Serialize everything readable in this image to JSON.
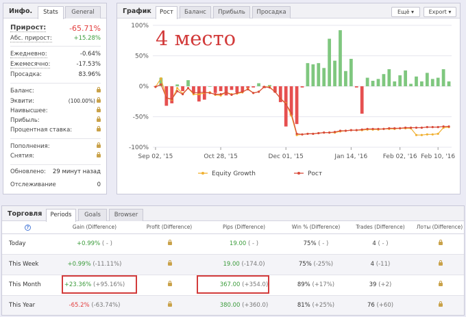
{
  "info": {
    "title": "Инфо.",
    "tabs": [
      "Stats",
      "General"
    ],
    "growth_label": "Прирост:",
    "growth_value": "-65.71%",
    "abs_label": "Абс. прирост:",
    "abs_value": "+15.28%",
    "daily_label": "Ежедневно:",
    "daily_value": "-0.64%",
    "monthly_label": "Ежемесячно:",
    "monthly_value": "-17.53%",
    "drawdown_label": "Просадка:",
    "drawdown_value": "83.96%",
    "balance_label": "Баланс:",
    "equity_label": "Эквити:",
    "equity_value": "(100.00%)",
    "highest_label": "Наивысшее:",
    "profit_label": "Прибыль:",
    "interest_label": "Процентная ставка:",
    "deposits_label": "Пополнения:",
    "withdrawals_label": "Снятия:",
    "updated_label": "Обновлено:",
    "updated_value": "29 минут назад",
    "tracking_label": "Отслеживание",
    "tracking_value": "0"
  },
  "chart_panel": {
    "title": "График",
    "tabs": [
      "Рост",
      "Баланс",
      "Прибыль",
      "Просадка"
    ],
    "more_label": "Ещё",
    "export_label": "Export",
    "overlay_text": "4 место"
  },
  "chart_data": {
    "type": "bar",
    "y_ticks": [
      "100%",
      "50%",
      "0%",
      "-50%",
      "-100%"
    ],
    "x_ticks": [
      "Sep 02, '15",
      "Oct 28, '15",
      "Dec 01, '15",
      "Jan 14, '16",
      "Feb 02, '16",
      "Feb 10, '16"
    ],
    "ylim": [
      -100,
      100
    ],
    "bars": [
      -1,
      14,
      -32,
      -28,
      3,
      -8,
      10,
      -10,
      -25,
      -22,
      0,
      -11,
      -8,
      -15,
      -6,
      -10,
      -9,
      -3,
      -2,
      5,
      -3,
      2,
      -10,
      -26,
      -66,
      -48,
      -62,
      -2,
      38,
      36,
      38,
      30,
      78,
      42,
      92,
      25,
      45,
      -2,
      -45,
      14,
      9,
      12,
      20,
      28,
      8,
      18,
      26,
      4,
      16,
      8,
      22,
      12,
      14,
      28,
      8
    ],
    "series": [
      {
        "name": "Equity Growth",
        "color": "#f0b030",
        "values": [
          -1,
          13,
          -19,
          -22,
          -3,
          -12,
          -3,
          -13,
          -13,
          -11,
          -10,
          -14,
          -15,
          -10,
          -13,
          -12,
          -10,
          -4,
          -11,
          -9,
          -1,
          -1,
          -9,
          -20,
          -28,
          -48,
          -80,
          -79,
          -78,
          -78,
          -77,
          -76,
          -76,
          -76,
          -74,
          -73,
          -72,
          -72,
          -72,
          -71,
          -71,
          -71,
          -70,
          -70,
          -70,
          -69,
          -69,
          -69,
          -80,
          -80,
          -79,
          -79,
          -78,
          -68,
          -67
        ]
      },
      {
        "name": "Рост",
        "color": "#d84a3a",
        "values": [
          -1,
          3,
          -19,
          -21,
          -8,
          -13,
          -3,
          -11,
          -10,
          -10,
          -11,
          -13,
          -13,
          -10,
          -14,
          -11,
          -9,
          -5,
          -11,
          -9,
          -1,
          -2,
          -9,
          -20,
          -29,
          -44,
          -78,
          -79,
          -78,
          -78,
          -77,
          -76,
          -76,
          -75,
          -73,
          -73,
          -72,
          -72,
          -71,
          -70,
          -70,
          -70,
          -70,
          -69,
          -69,
          -69,
          -68,
          -68,
          -68,
          -68,
          -67,
          -67,
          -67,
          -66,
          -66
        ]
      }
    ]
  },
  "trading": {
    "title": "Торговля",
    "tabs": [
      "Periods",
      "Goals",
      "Browser"
    ],
    "help_icon": "?",
    "headers": [
      "Gain (Difference)",
      "Profit (Difference)",
      "Pips (Difference)",
      "Win % (Difference)",
      "Trades (Difference)",
      "Лоты (Difference)"
    ],
    "rows": [
      {
        "label": "Today",
        "gain": "+0.99%",
        "gain_diff": "( - )",
        "pips": "19.00",
        "pips_diff": "( - )",
        "win": "75%",
        "win_diff": "( - )",
        "trades": "4",
        "trades_diff": "( - )"
      },
      {
        "label": "This Week",
        "gain": "+0.99%",
        "gain_diff": "(-11.11%)",
        "pips": "19.00",
        "pips_diff": "(-174.0)",
        "win": "75%",
        "win_diff": "(-25%)",
        "trades": "4",
        "trades_diff": "(-11)"
      },
      {
        "label": "This Month",
        "gain": "+23.36%",
        "gain_diff": "(+95.16%)",
        "pips": "367.00",
        "pips_diff": "(+354.0)",
        "win": "89%",
        "win_diff": "(+17%)",
        "trades": "39",
        "trades_diff": "(+2)"
      },
      {
        "label": "This Year",
        "gain": "-65.2%",
        "gain_diff": "(-63.74%)",
        "pips": "380.00",
        "pips_diff": "(+360.0)",
        "win": "81%",
        "win_diff": "(+25%)",
        "trades": "76",
        "trades_diff": "(+60)"
      }
    ]
  }
}
